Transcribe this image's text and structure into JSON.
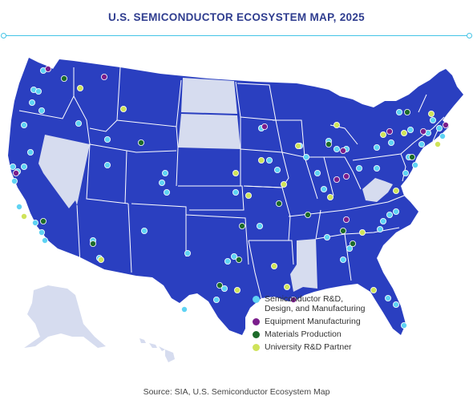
{
  "title": "U.S. SEMICONDUCTOR ECOSYSTEM MAP, 2025",
  "source": "Source: SIA, U.S. Semiconductor Ecosystem Map",
  "colors": {
    "land_active": "#2a3fc0",
    "land_inactive": "#d6dcef",
    "border": "#ffffff",
    "accent_rule": "#43c4e6"
  },
  "legend": [
    {
      "key": "rd",
      "label": "Semiconductor R&D,\nDesign, and Manufacturing",
      "color": "#5fd3f3"
    },
    {
      "key": "equip",
      "label": "Equipment Manufacturing",
      "color": "#7b1e8c"
    },
    {
      "key": "materials",
      "label": "Materials Production",
      "color": "#1d6b2a"
    },
    {
      "key": "univ",
      "label": "University R&D Partner",
      "color": "#cfe35a"
    }
  ],
  "states_without_sites": [
    "Nevada",
    "North Dakota",
    "South Dakota",
    "West Virginia",
    "Mississippi",
    "Alaska",
    "Hawaii"
  ]
}
